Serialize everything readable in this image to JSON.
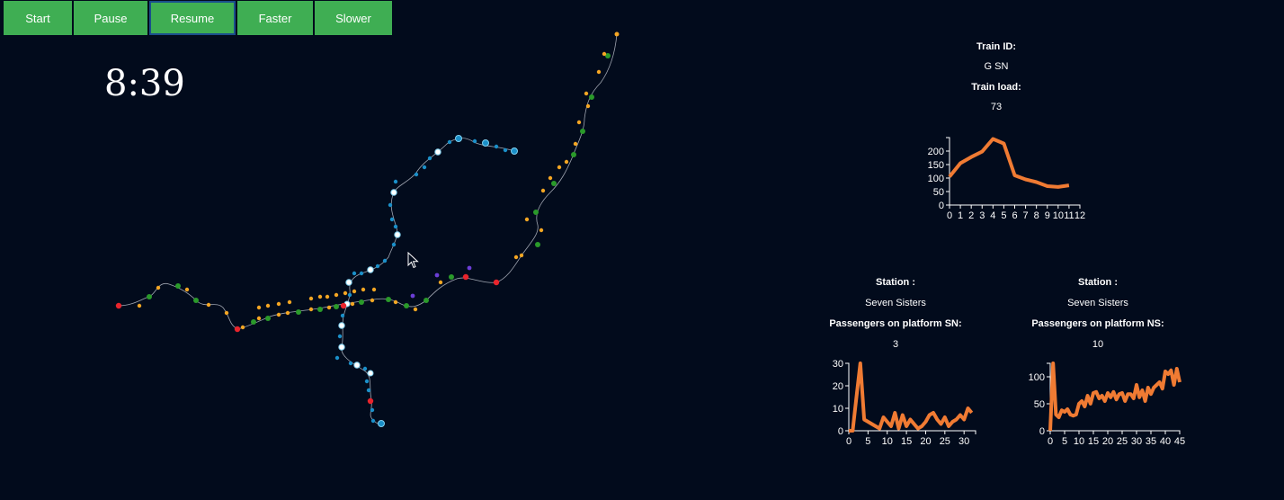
{
  "controls": {
    "start": "Start",
    "pause": "Pause",
    "resume": "Resume",
    "faster": "Faster",
    "slower": "Slower"
  },
  "clock": "8:39",
  "colors": {
    "background": "#020b1c",
    "button": "#3fae53",
    "line_chart": "#f07b33",
    "station_blue": "#1a8fc8",
    "station_orange": "#f5a623",
    "station_green": "#2a9a2a",
    "station_red": "#e8242c",
    "station_white": "#ffffff",
    "station_purple": "#6b3ed6"
  },
  "train_panel": {
    "train_id_label": "Train ID:",
    "train_id": "G SN",
    "train_load_label": "Train load:",
    "train_load": "73"
  },
  "station_sn": {
    "station_label": "Station :",
    "station_name": "Seven Sisters",
    "platform_label": "Passengers on platform SN:",
    "count": "3"
  },
  "station_ns": {
    "station_label": "Station :",
    "station_name": "Seven Sisters",
    "platform_label": "Passengers on platform NS:",
    "count": "10"
  },
  "chart_data": [
    {
      "type": "line",
      "title": "",
      "xlabel": "",
      "ylabel": "",
      "x": [
        0,
        1,
        2,
        3,
        4,
        5,
        6,
        7,
        8,
        9,
        10,
        11
      ],
      "values": [
        105,
        155,
        178,
        198,
        245,
        228,
        110,
        95,
        85,
        70,
        67,
        73
      ],
      "xticks": [
        0,
        1,
        2,
        3,
        4,
        5,
        6,
        7,
        8,
        9,
        10,
        11,
        12
      ],
      "yticks": [
        0,
        50,
        100,
        150,
        200
      ],
      "xlim": [
        0,
        12
      ],
      "ylim": [
        0,
        250
      ]
    },
    {
      "type": "line",
      "title": "",
      "xlabel": "",
      "ylabel": "",
      "x": [
        0,
        1,
        2,
        3,
        4,
        5,
        6,
        7,
        8,
        9,
        10,
        11,
        12,
        13,
        14,
        15,
        16,
        17,
        18,
        19,
        20,
        21,
        22,
        23,
        24,
        25,
        26,
        27,
        28,
        29,
        30,
        31,
        32
      ],
      "values": [
        0,
        0,
        15,
        30,
        5,
        4,
        3,
        2,
        1,
        6,
        4,
        2,
        8,
        1,
        7,
        2,
        5,
        3,
        1,
        2,
        4,
        7,
        8,
        5,
        3,
        6,
        2,
        4,
        5,
        7,
        5,
        10,
        8
      ],
      "xticks": [
        0,
        5,
        10,
        15,
        20,
        25,
        30
      ],
      "yticks": [
        0,
        10,
        20,
        30
      ],
      "xlim": [
        0,
        33
      ],
      "ylim": [
        0,
        30
      ]
    },
    {
      "type": "line",
      "title": "",
      "xlabel": "",
      "ylabel": "",
      "x": [
        0,
        1,
        2,
        3,
        4,
        5,
        6,
        7,
        8,
        9,
        10,
        11,
        12,
        13,
        14,
        15,
        16,
        17,
        18,
        19,
        20,
        21,
        22,
        23,
        24,
        25,
        26,
        27,
        28,
        29,
        30,
        31,
        32,
        33,
        34,
        35,
        36,
        37,
        38,
        39,
        40,
        41,
        42,
        43,
        44,
        45
      ],
      "values": [
        0,
        125,
        30,
        25,
        38,
        35,
        40,
        30,
        28,
        30,
        50,
        55,
        45,
        65,
        50,
        70,
        72,
        60,
        65,
        55,
        70,
        62,
        72,
        58,
        68,
        70,
        55,
        68,
        68,
        60,
        85,
        62,
        75,
        55,
        80,
        68,
        80,
        85,
        90,
        78,
        110,
        105,
        112,
        85,
        115,
        90
      ],
      "xticks": [
        0,
        5,
        10,
        15,
        20,
        25,
        30,
        35,
        40,
        45
      ],
      "yticks": [
        0,
        50,
        100
      ],
      "xlim": [
        0,
        45
      ],
      "ylim": [
        0,
        125
      ]
    }
  ]
}
